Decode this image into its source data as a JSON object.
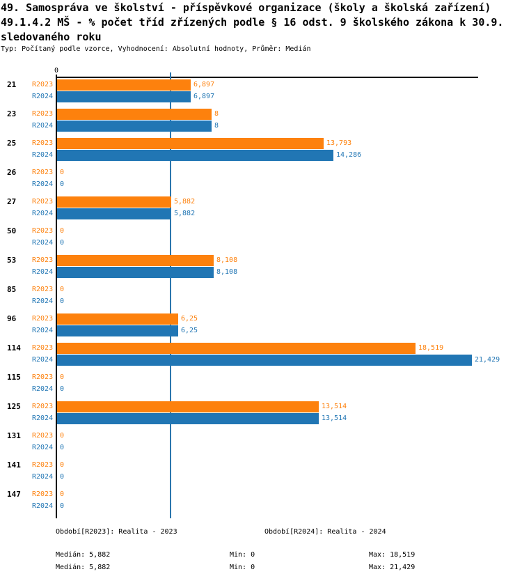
{
  "header": {
    "title_line1": "49. Samospráva ve školství - příspěvkové organizace (školy a školská zařízení)",
    "title_line2": "49.1.4.2 MŠ - % počet tříd zřízených podle § 16 odst. 9 školského zákona k 30.9.",
    "title_line3": "sledovaného roku",
    "meta": "Typ: Počítaný podle vzorce, Vyhodnocení: Absolutní hodnoty, Průměr: Medián"
  },
  "chart_data": {
    "type": "bar",
    "orientation": "horizontal",
    "title": "49.1.4.2 MŠ - % počet tříd zřízených podle § 16 odst. 9 školského zákona k 30.9. sledovaného roku",
    "categories": [
      "21",
      "23",
      "25",
      "26",
      "27",
      "50",
      "53",
      "85",
      "96",
      "114",
      "115",
      "125",
      "131",
      "141",
      "147"
    ],
    "series": [
      {
        "name": "R2023",
        "period_label": "Období[R2023]: Realita - 2023",
        "color": "#fd810d",
        "values": [
          6.897,
          8,
          13.793,
          0,
          5.882,
          0,
          8.108,
          0,
          6.25,
          18.519,
          0,
          13.514,
          0,
          0,
          0
        ],
        "value_labels": [
          "6,897",
          "8",
          "13,793",
          "0",
          "5,882",
          "0",
          "8,108",
          "0",
          "6,25",
          "18,519",
          "0",
          "13,514",
          "0",
          "0",
          "0"
        ],
        "stats": {
          "median_label": "Medián: 5,882",
          "min_label": "Min: 0",
          "max_label": "Max: 18,519"
        }
      },
      {
        "name": "R2024",
        "period_label": "Období[R2024]: Realita - 2024",
        "color": "#2176b4",
        "values": [
          6.897,
          8,
          14.286,
          0,
          5.882,
          0,
          8.108,
          0,
          6.25,
          21.429,
          0,
          13.514,
          0,
          0,
          0
        ],
        "value_labels": [
          "6,897",
          "8",
          "14,286",
          "0",
          "5,882",
          "0",
          "8,108",
          "0",
          "6,25",
          "21,429",
          "0",
          "13,514",
          "0",
          "0",
          "0"
        ],
        "stats": {
          "median_label": "Medián: 5,882",
          "min_label": "Min: 0",
          "max_label": "Max: 21,429"
        }
      }
    ],
    "median_line_value": 5.882,
    "zero_tick": "0",
    "xlim": [
      0,
      21.75
    ],
    "grid": false,
    "legend_position": "bottom"
  },
  "colors": {
    "axis": "#000000",
    "median_line": "#2b76ad"
  }
}
